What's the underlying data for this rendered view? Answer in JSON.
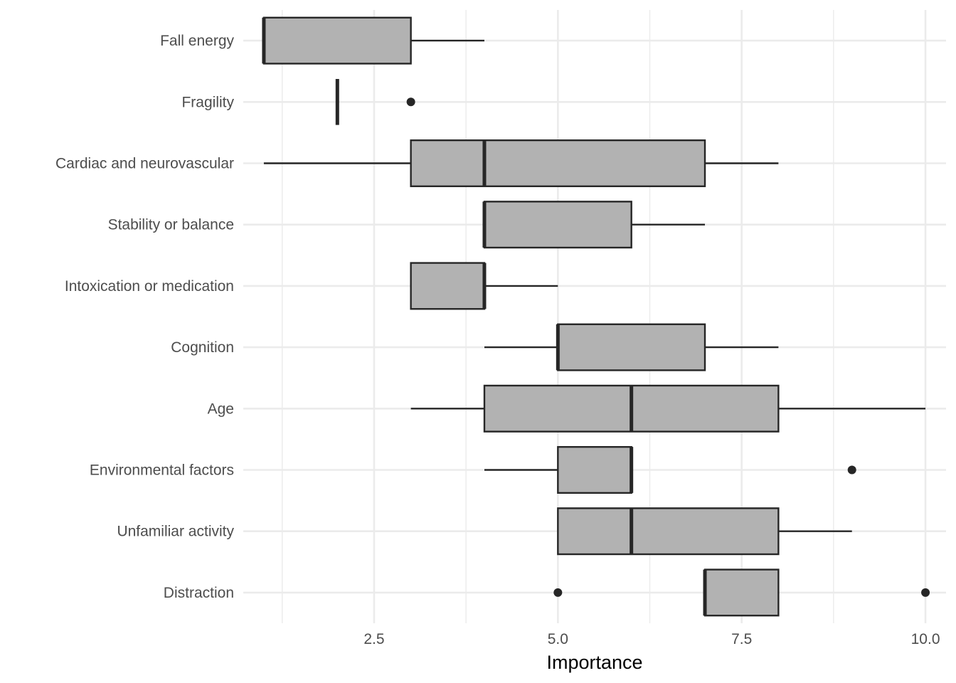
{
  "chart_data": {
    "type": "boxplot",
    "orientation": "horizontal",
    "xlabel": "Importance",
    "ylabel": "",
    "xlim": [
      0.72,
      10.28
    ],
    "xticks": [
      2.5,
      5.0,
      7.5,
      10.0
    ],
    "xtick_labels": [
      "2.5",
      "5.0",
      "7.5",
      "10.0"
    ],
    "grid": true,
    "colors": {
      "box_fill": "#b2b2b2",
      "box_stroke": "#262626",
      "grid": "#ebebeb",
      "text": "#4d4d4d"
    },
    "categories": [
      "Fall energy",
      "Fragility",
      "Cardiac and neurovascular",
      "Stability or balance",
      "Intoxication or medication",
      "Cognition",
      "Age",
      "Environmental factors",
      "Unfamiliar activity",
      "Distraction"
    ],
    "boxes": [
      {
        "label": "Fall energy",
        "whisker_low": 1,
        "q1": 1,
        "median": 1,
        "q3": 3,
        "whisker_high": 4,
        "outliers": []
      },
      {
        "label": "Fragility",
        "whisker_low": 2,
        "q1": 2,
        "median": 2,
        "q3": 2,
        "whisker_high": 2,
        "outliers": [
          3
        ]
      },
      {
        "label": "Cardiac and neurovascular",
        "whisker_low": 1,
        "q1": 3,
        "median": 4,
        "q3": 7,
        "whisker_high": 8,
        "outliers": []
      },
      {
        "label": "Stability or balance",
        "whisker_low": 4,
        "q1": 4,
        "median": 4,
        "q3": 6,
        "whisker_high": 7,
        "outliers": []
      },
      {
        "label": "Intoxication or medication",
        "whisker_low": 3,
        "q1": 3,
        "median": 4,
        "q3": 4,
        "whisker_high": 5,
        "outliers": []
      },
      {
        "label": "Cognition",
        "whisker_low": 4,
        "q1": 5,
        "median": 5,
        "q3": 7,
        "whisker_high": 8,
        "outliers": []
      },
      {
        "label": "Age",
        "whisker_low": 3,
        "q1": 4,
        "median": 6,
        "q3": 8,
        "whisker_high": 10,
        "outliers": []
      },
      {
        "label": "Environmental factors",
        "whisker_low": 4,
        "q1": 5,
        "median": 6,
        "q3": 6,
        "whisker_high": 6,
        "outliers": [
          9
        ]
      },
      {
        "label": "Unfamiliar activity",
        "whisker_low": 5,
        "q1": 5,
        "median": 6,
        "q3": 8,
        "whisker_high": 9,
        "outliers": []
      },
      {
        "label": "Distraction",
        "whisker_low": 7,
        "q1": 7,
        "median": 7,
        "q3": 8,
        "whisker_high": 8,
        "outliers": [
          5,
          10
        ]
      }
    ]
  }
}
